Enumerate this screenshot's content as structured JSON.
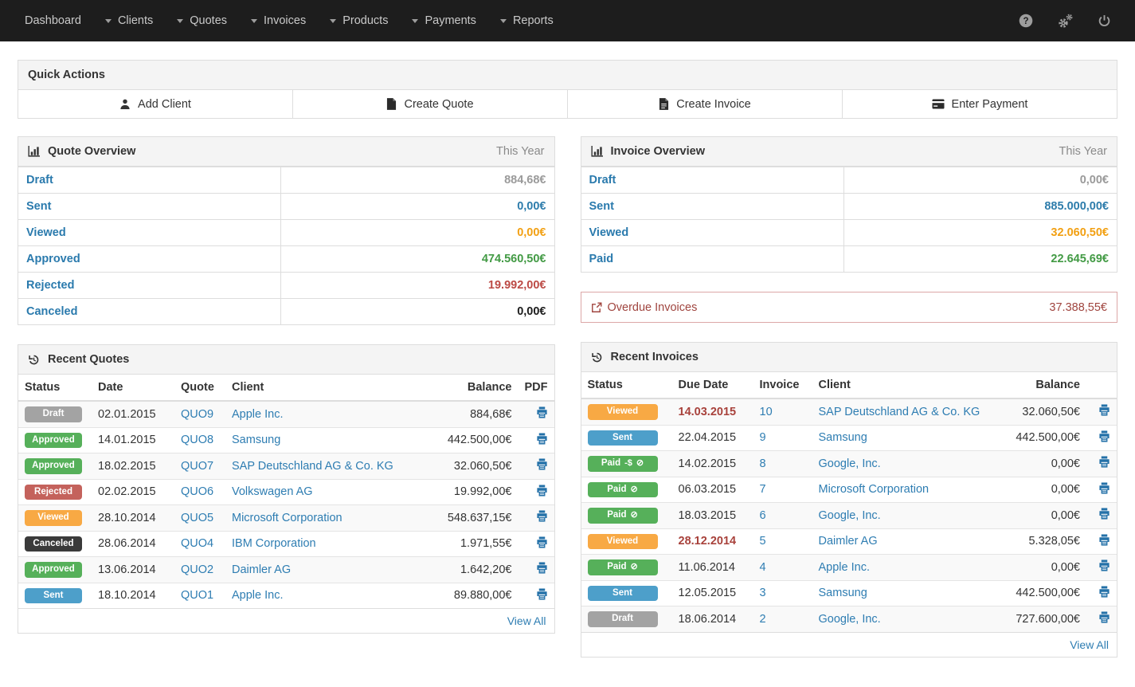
{
  "navbar": {
    "items": [
      {
        "label": "Dashboard",
        "caret": false
      },
      {
        "label": "Clients",
        "caret": true
      },
      {
        "label": "Quotes",
        "caret": true
      },
      {
        "label": "Invoices",
        "caret": true
      },
      {
        "label": "Products",
        "caret": true
      },
      {
        "label": "Payments",
        "caret": true
      },
      {
        "label": "Reports",
        "caret": true
      }
    ],
    "icons": [
      "help-icon",
      "settings-icon",
      "power-icon"
    ]
  },
  "quick_actions": {
    "title": "Quick Actions",
    "buttons": [
      {
        "icon": "user-icon",
        "label": "Add Client"
      },
      {
        "icon": "file-icon",
        "label": "Create Quote"
      },
      {
        "icon": "file-text-icon",
        "label": "Create Invoice"
      },
      {
        "icon": "credit-card-icon",
        "label": "Enter Payment"
      }
    ]
  },
  "quote_overview": {
    "title": "Quote Overview",
    "period": "This Year",
    "rows": [
      {
        "label": "Draft",
        "value": "884,68€",
        "tone": "gray"
      },
      {
        "label": "Sent",
        "value": "0,00€",
        "tone": "blue"
      },
      {
        "label": "Viewed",
        "value": "0,00€",
        "tone": "orange"
      },
      {
        "label": "Approved",
        "value": "474.560,50€",
        "tone": "green"
      },
      {
        "label": "Rejected",
        "value": "19.992,00€",
        "tone": "red"
      },
      {
        "label": "Canceled",
        "value": "0,00€",
        "tone": "dark"
      }
    ]
  },
  "invoice_overview": {
    "title": "Invoice Overview",
    "period": "This Year",
    "rows": [
      {
        "label": "Draft",
        "value": "0,00€",
        "tone": "gray"
      },
      {
        "label": "Sent",
        "value": "885.000,00€",
        "tone": "blue"
      },
      {
        "label": "Viewed",
        "value": "32.060,50€",
        "tone": "orange"
      },
      {
        "label": "Paid",
        "value": "22.645,69€",
        "tone": "green"
      }
    ]
  },
  "overdue": {
    "icon": "external-link-icon",
    "label": "Overdue Invoices",
    "value": "37.388,55€"
  },
  "recent_quotes": {
    "title": "Recent Quotes",
    "columns": [
      "Status",
      "Date",
      "Quote",
      "Client",
      "Balance",
      "PDF"
    ],
    "view_all": "View All",
    "rows": [
      {
        "status": "Draft",
        "tone": "draft",
        "date": "02.01.2015",
        "number": "QUO9",
        "client": "Apple Inc.",
        "balance": "884,68€"
      },
      {
        "status": "Approved",
        "tone": "approved",
        "date": "14.01.2015",
        "number": "QUO8",
        "client": "Samsung",
        "balance": "442.500,00€"
      },
      {
        "status": "Approved",
        "tone": "approved",
        "date": "18.02.2015",
        "number": "QUO7",
        "client": "SAP Deutschland AG & Co. KG",
        "balance": "32.060,50€"
      },
      {
        "status": "Rejected",
        "tone": "rejected",
        "date": "02.02.2015",
        "number": "QUO6",
        "client": "Volkswagen AG",
        "balance": "19.992,00€"
      },
      {
        "status": "Viewed",
        "tone": "viewed",
        "date": "28.10.2014",
        "number": "QUO5",
        "client": "Microsoft Corporation",
        "balance": "548.637,15€"
      },
      {
        "status": "Canceled",
        "tone": "canceled",
        "date": "28.06.2014",
        "number": "QUO4",
        "client": "IBM Corporation",
        "balance": "1.971,55€"
      },
      {
        "status": "Approved",
        "tone": "approved",
        "date": "13.06.2014",
        "number": "QUO2",
        "client": "Daimler AG",
        "balance": "1.642,20€"
      },
      {
        "status": "Sent",
        "tone": "sent",
        "date": "18.10.2014",
        "number": "QUO1",
        "client": "Apple Inc.",
        "balance": "89.880,00€"
      }
    ]
  },
  "recent_invoices": {
    "title": "Recent Invoices",
    "columns": [
      "Status",
      "Due Date",
      "Invoice",
      "Client",
      "Balance"
    ],
    "view_all": "View All",
    "rows": [
      {
        "status": "Viewed",
        "tone": "viewed",
        "status_icons": [],
        "date": "14.03.2015",
        "overdue": true,
        "number": "10",
        "client": "SAP Deutschland AG & Co. KG",
        "balance": "32.060,50€"
      },
      {
        "status": "Sent",
        "tone": "sent",
        "status_icons": [],
        "date": "22.04.2015",
        "overdue": false,
        "number": "9",
        "client": "Samsung",
        "balance": "442.500,00€"
      },
      {
        "status": "Paid",
        "tone": "paid",
        "status_icons": [
          "minus-dollar",
          "ban"
        ],
        "date": "14.02.2015",
        "overdue": false,
        "number": "8",
        "client": "Google, Inc.",
        "balance": "0,00€"
      },
      {
        "status": "Paid",
        "tone": "paid",
        "status_icons": [
          "ban"
        ],
        "date": "06.03.2015",
        "overdue": false,
        "number": "7",
        "client": "Microsoft Corporation",
        "balance": "0,00€"
      },
      {
        "status": "Paid",
        "tone": "paid",
        "status_icons": [
          "ban"
        ],
        "date": "18.03.2015",
        "overdue": false,
        "number": "6",
        "client": "Google, Inc.",
        "balance": "0,00€"
      },
      {
        "status": "Viewed",
        "tone": "viewed",
        "status_icons": [],
        "date": "28.12.2014",
        "overdue": true,
        "number": "5",
        "client": "Daimler AG",
        "balance": "5.328,05€"
      },
      {
        "status": "Paid",
        "tone": "paid",
        "status_icons": [
          "ban"
        ],
        "date": "11.06.2014",
        "overdue": false,
        "number": "4",
        "client": "Apple Inc.",
        "balance": "0,00€"
      },
      {
        "status": "Sent",
        "tone": "sent",
        "status_icons": [],
        "date": "12.05.2015",
        "overdue": false,
        "number": "3",
        "client": "Samsung",
        "balance": "442.500,00€"
      },
      {
        "status": "Draft",
        "tone": "draft",
        "status_icons": [],
        "date": "18.06.2014",
        "overdue": false,
        "number": "2",
        "client": "Google, Inc.",
        "balance": "727.600,00€"
      }
    ]
  },
  "colors": {
    "navbar_bg": "#1d1d1d",
    "label_blue": "#2a7aad",
    "link_blue": "#2e7db2",
    "value_gray": "#9a9a9a",
    "value_blue": "#2d7cab",
    "value_orange": "#f2a013",
    "value_green": "#429a44",
    "value_red": "#bc4a45",
    "overdue_red": "#a0453f",
    "badge_draft": "#a3a3a3",
    "badge_sent": "#4d9fca",
    "badge_viewed": "#f8a944",
    "badge_paid": "#56b05a",
    "badge_rejected": "#c4625c",
    "badge_canceled": "#3a3a3a"
  }
}
